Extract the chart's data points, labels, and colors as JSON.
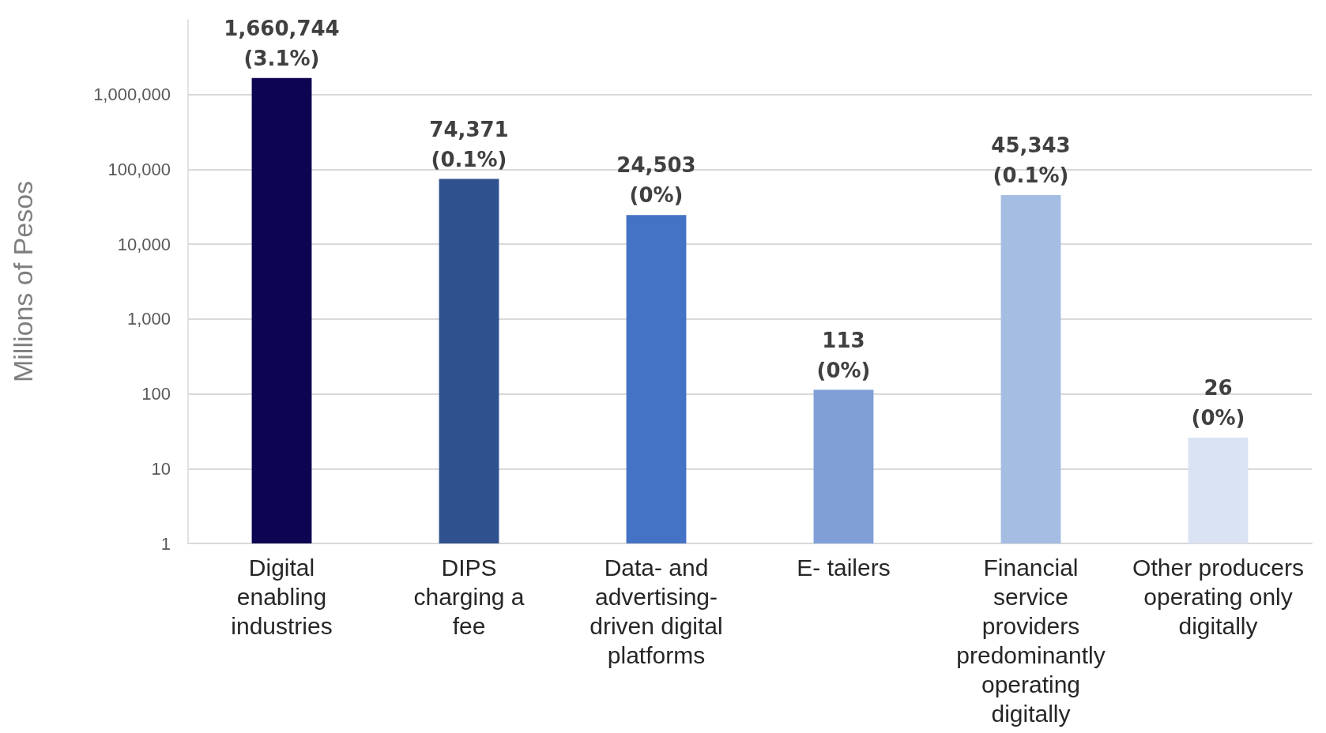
{
  "chart_data": {
    "type": "bar",
    "categories": [
      "Digital\nenabling\nindustries",
      "DIPS\ncharging a\nfee",
      "Data- and\nadvertising-\ndriven digital\nplatforms",
      "E- tailers",
      "Financial\nservice\nproviders\npredominantly\noperating\ndigitally",
      "Other producers\noperating only\ndigitally"
    ],
    "values": [
      1660744,
      74371,
      24503,
      113,
      45343,
      26
    ],
    "colors": [
      "#0d0551",
      "#2f528f",
      "#4472c4",
      "#809fd7",
      "#a5bde3",
      "#dae3f3"
    ],
    "value_labels": [
      "1,660,744\n(3.1%)",
      "74,371\n(0.1%)",
      "24,503\n(0%)",
      "113\n(0%)",
      "45,343\n(0.1%)",
      "26\n(0%)"
    ],
    "ylabel": "Millions of Pesos",
    "log": "y",
    "ylim": [
      1,
      10000000
    ],
    "yticks": [
      1,
      10,
      100,
      {
        "value": 1000,
        "label": "1,000"
      },
      {
        "value": 10000,
        "label": "10,000"
      },
      {
        "value": 100000,
        "label": "100,000"
      },
      {
        "value": 1000000,
        "label": "1,000,000"
      }
    ],
    "grid": "y"
  }
}
